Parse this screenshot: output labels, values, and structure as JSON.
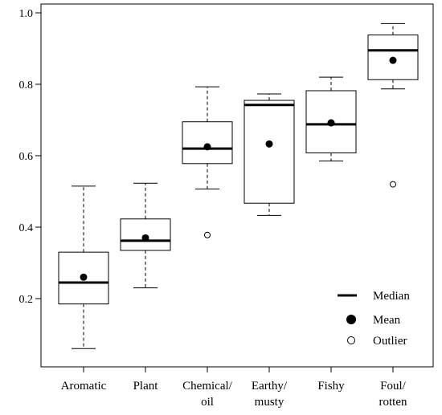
{
  "chart_data": {
    "type": "box",
    "ylim": [
      0,
      1.0
    ],
    "y_ticks": [
      "0.2",
      "0.4",
      "0.6",
      "0.8",
      "1.0"
    ],
    "y_tick_values": [
      0.2,
      0.4,
      0.6,
      0.8,
      1.0
    ],
    "categories": [
      {
        "lines": [
          "Aromatic"
        ]
      },
      {
        "lines": [
          "Plant"
        ]
      },
      {
        "lines": [
          "Chemical/",
          "oil"
        ]
      },
      {
        "lines": [
          "Earthy/",
          "musty"
        ]
      },
      {
        "lines": [
          "Fishy"
        ]
      },
      {
        "lines": [
          "Foul/",
          "rotten"
        ]
      }
    ],
    "boxes": [
      {
        "whisker_low": 0.06,
        "q1": 0.185,
        "median": 0.245,
        "q3": 0.33,
        "whisker_high": 0.515,
        "mean": 0.26,
        "outliers": []
      },
      {
        "whisker_low": 0.23,
        "q1": 0.335,
        "median": 0.362,
        "q3": 0.423,
        "whisker_high": 0.523,
        "mean": 0.37,
        "outliers": []
      },
      {
        "whisker_low": 0.507,
        "q1": 0.578,
        "median": 0.62,
        "q3": 0.695,
        "whisker_high": 0.793,
        "mean": 0.625,
        "outliers": [
          0.378
        ]
      },
      {
        "whisker_low": 0.433,
        "q1": 0.467,
        "median": 0.742,
        "q3": 0.755,
        "whisker_high": 0.773,
        "mean": 0.633,
        "outliers": []
      },
      {
        "whisker_low": 0.585,
        "q1": 0.608,
        "median": 0.688,
        "q3": 0.782,
        "whisker_high": 0.82,
        "mean": 0.692,
        "outliers": []
      },
      {
        "whisker_low": 0.787,
        "q1": 0.813,
        "median": 0.895,
        "q3": 0.938,
        "whisker_high": 0.97,
        "mean": 0.867,
        "outliers": [
          0.52
        ]
      }
    ],
    "legend": {
      "placement": "bottom-right",
      "median_label": "Median",
      "mean_label": "Mean",
      "outlier_label": "Outlier"
    },
    "grid": false
  }
}
